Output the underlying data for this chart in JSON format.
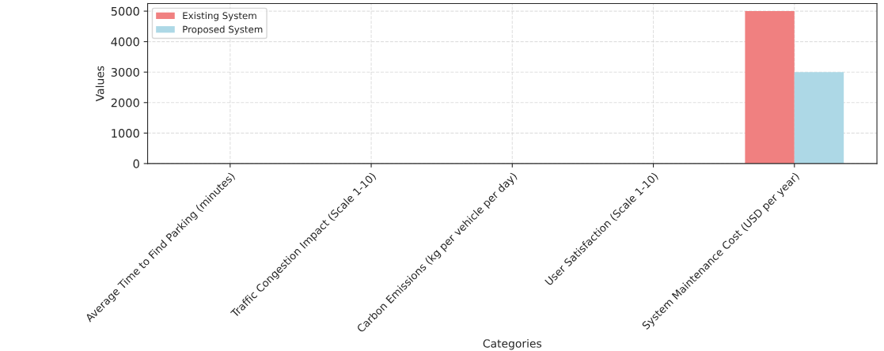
{
  "chart_data": {
    "type": "bar",
    "xlabel": "Categories",
    "ylabel": "Values",
    "categories": [
      "Average Time to Find Parking (minutes)",
      "Traffic Congestion Impact (Scale 1-10)",
      "Carbon Emissions (kg per vehicle per day)",
      "User Satisfaction (Scale 1-10)",
      "System Maintenance Cost (USD per year)"
    ],
    "series": [
      {
        "name": "Existing System",
        "color": "#f08080",
        "values": [
          0,
          0,
          0,
          0,
          5000
        ]
      },
      {
        "name": "Proposed System",
        "color": "#add8e6",
        "values": [
          0,
          0,
          0,
          0,
          3000
        ]
      }
    ],
    "ylim": [
      0,
      5250
    ],
    "yticks": [
      0,
      1000,
      2000,
      3000,
      4000,
      5000
    ],
    "grid": true,
    "line_style": "dashed",
    "legend": "top left"
  }
}
